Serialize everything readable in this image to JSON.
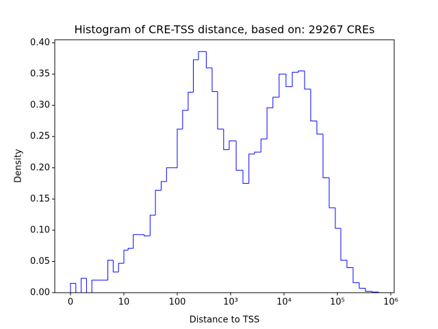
{
  "chart_data": {
    "type": "histogram",
    "title": "Histogram of CRE-TSS distance, based on: 29267 CREs",
    "x_label": "Distance to TSS",
    "y_label": "Density",
    "xscale": "symlog",
    "linthresh": 10,
    "bins": [
      0,
      1,
      2,
      3,
      4,
      5,
      6,
      7,
      8,
      9,
      10,
      12,
      15,
      19,
      24,
      31,
      39,
      50,
      63,
      79,
      100,
      126,
      160,
      200,
      250,
      350,
      450,
      570,
      740,
      940,
      1270,
      1700,
      2200,
      2800,
      3700,
      4800,
      6200,
      8100,
      10900,
      14300,
      18600,
      24300,
      31600,
      41300,
      53800,
      70200,
      91500,
      116000,
      151000,
      197000,
      257000,
      336000,
      451000,
      588000
    ],
    "values": [
      0.015,
      0,
      0.023,
      0,
      0.02,
      0.02,
      0.02,
      0.052,
      0.033,
      0.047,
      0.068,
      0.071,
      0.093,
      0.093,
      0.091,
      0.124,
      0.164,
      0.178,
      0.2,
      0.2,
      0.262,
      0.292,
      0.321,
      0.373,
      0.386,
      0.36,
      0.322,
      0.262,
      0.229,
      0.243,
      0.196,
      0.175,
      0.222,
      0.225,
      0.246,
      0.296,
      0.313,
      0.35,
      0.33,
      0.353,
      0.355,
      0.326,
      0.275,
      0.254,
      0.184,
      0.136,
      0.103,
      0.052,
      0.04,
      0.016,
      0.007,
      0.002,
      0.001
    ],
    "color": "#0000ff",
    "xlim": [
      -2.95,
      1160000
    ],
    "xticks": [
      0,
      10,
      100,
      {
        "value": 1000,
        "label": "10³"
      },
      {
        "value": 10000,
        "label": "10⁴"
      },
      {
        "value": 100000,
        "label": "10⁵"
      },
      {
        "value": 1000000,
        "label": "10⁶"
      }
    ],
    "ylim": [
      0,
      0.405
    ],
    "yticks": [
      {
        "value": 0,
        "label": "0.00"
      },
      {
        "value": 0.05,
        "label": "0.05"
      },
      {
        "value": 0.1,
        "label": "0.10"
      },
      {
        "value": 0.15,
        "label": "0.15"
      },
      {
        "value": 0.2,
        "label": "0.20"
      },
      {
        "value": 0.25,
        "label": "0.25"
      },
      {
        "value": 0.3,
        "label": "0.30"
      },
      {
        "value": 0.35,
        "label": "0.35"
      },
      {
        "value": 0.4,
        "label": "0.40"
      }
    ]
  }
}
